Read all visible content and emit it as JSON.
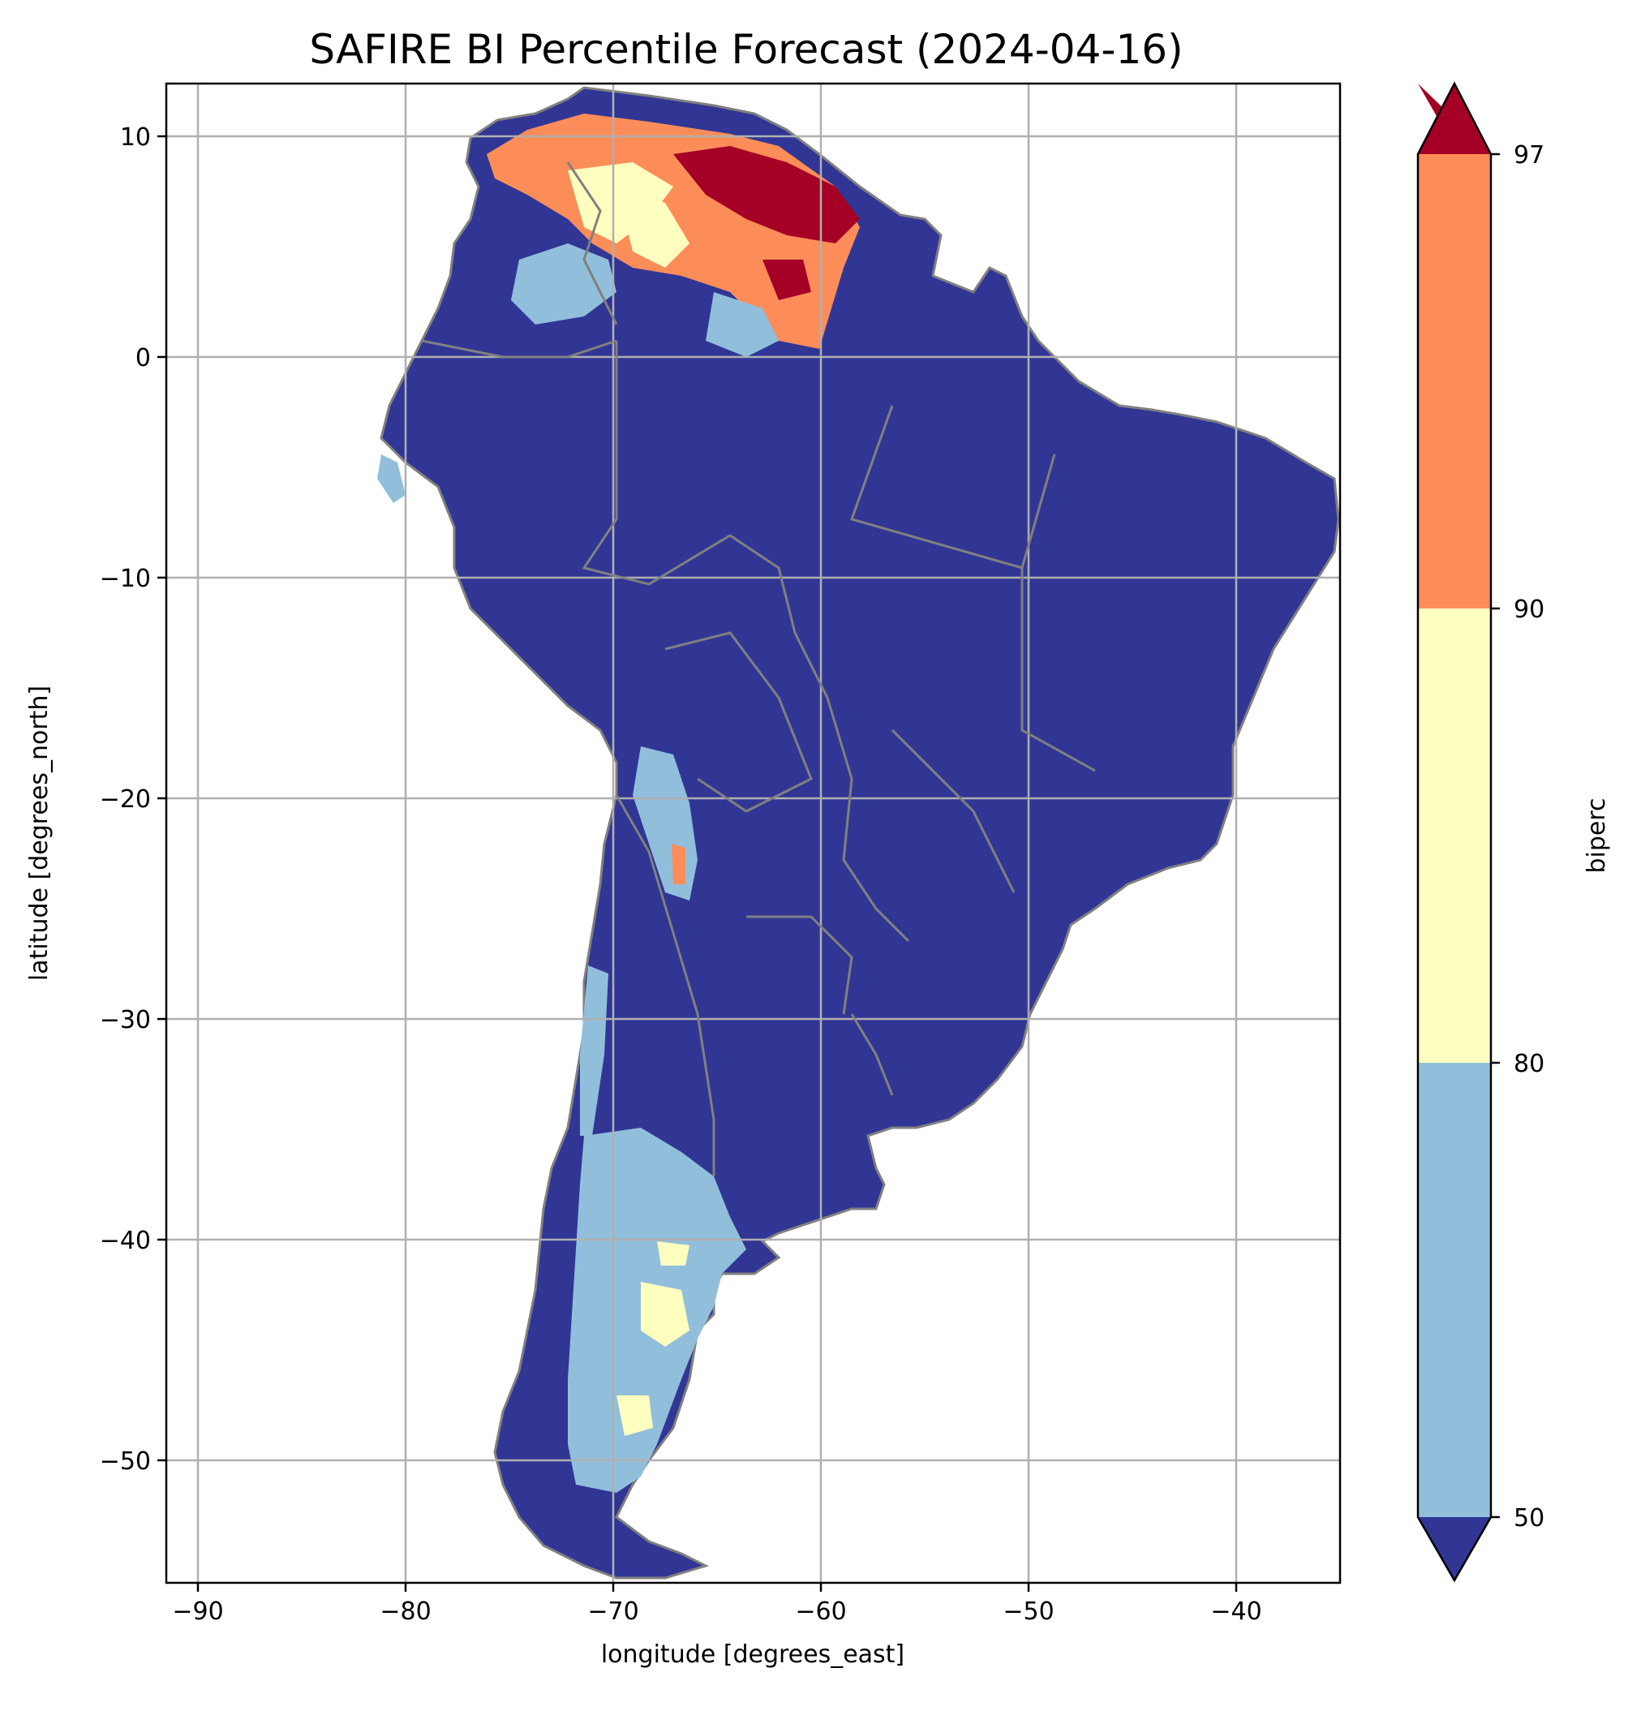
{
  "title": "SAFIRE BI Percentile Forecast (2024-04-16)",
  "axes": {
    "xlabel": "longitude [degrees_east]",
    "ylabel": "latitude [degrees_north]",
    "xlim": [
      -91.5,
      -35
    ],
    "ylim": [
      -55.5,
      12.3
    ],
    "xticks": [
      -90,
      -80,
      -70,
      -60,
      -50,
      -40
    ],
    "xtick_labels": [
      "−90",
      "−80",
      "−70",
      "−60",
      "−50",
      "−40"
    ],
    "yticks": [
      10,
      0,
      -10,
      -20,
      -30,
      -40,
      -50
    ],
    "ytick_labels": [
      "10",
      "0",
      "−10",
      "−20",
      "−30",
      "−40",
      "−50"
    ],
    "grid": true
  },
  "colorbar": {
    "label": "biperc",
    "ticks": [
      "97",
      "90",
      "80",
      "50"
    ],
    "bins": [
      {
        "range": "<50",
        "color": "#313695"
      },
      {
        "range": "50-80",
        "color": "#91bfdb"
      },
      {
        "range": "80-90",
        "color": "#ffffbf"
      },
      {
        "range": "90-97",
        "color": "#fc8d59"
      },
      {
        "range": ">97",
        "color": "#a50026"
      }
    ],
    "extend": "both"
  },
  "colors": {
    "land_low": "#313695",
    "low": "#91bfdb",
    "mid": "#ffffbf",
    "high": "#fc8d59",
    "extreme": "#a50026",
    "border": "#808080",
    "grid": "#b0b0b0"
  }
}
